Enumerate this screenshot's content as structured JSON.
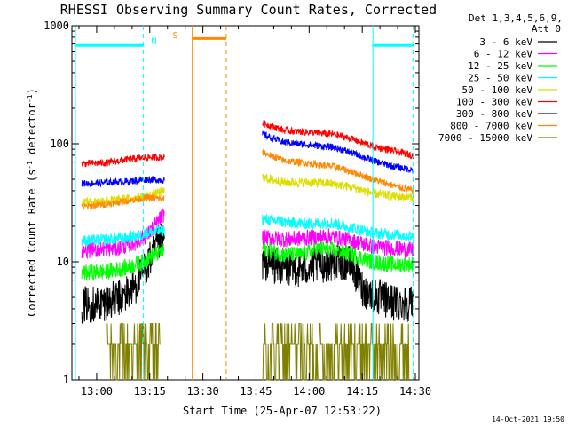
{
  "chart_data": {
    "type": "line",
    "title": "RHESSI Observing Summary Count Rates, Corrected",
    "xlabel": "Start Time (25-Apr-07 12:53:22)",
    "ylabel_main": "Corrected Count Rate (s",
    "ylabel_sup1": "-1",
    "ylabel_mid": " detector",
    "ylabel_sup2": "-1",
    "ylabel_end": ")",
    "yscale": "log",
    "ylim": [
      1,
      1000
    ],
    "xlim_minutes": [
      12.9,
      30.9
    ],
    "x_start_hm": [
      12,
      53
    ],
    "x_ticks": [
      {
        "label": "13:00",
        "t": 12.95
      },
      {
        "label": "13:15",
        "t": 13.25
      },
      {
        "label": "13:30",
        "t": 13.5
      },
      {
        "label": "13:45",
        "t": 13.75
      },
      {
        "label": "14:00",
        "t": 14.0
      },
      {
        "label": "14:15",
        "t": 14.25
      },
      {
        "label": "14:30",
        "t": 14.5
      }
    ],
    "y_ticks": [
      {
        "label": "1",
        "v": 1
      },
      {
        "label": "10",
        "v": 10
      },
      {
        "label": "100",
        "v": 100
      },
      {
        "label": "1000",
        "v": 1000
      }
    ],
    "legend": {
      "header1": "Det 1,3,4,5,6,9,",
      "header2": "Att 0",
      "placement": "right"
    },
    "series": [
      {
        "name": "3 - 6 keV",
        "color": "#000000",
        "seg1": [
          [
            12.93,
            4.3
          ],
          [
            13.03,
            4.5
          ],
          [
            13.12,
            5.0
          ],
          [
            13.18,
            6.2
          ],
          [
            13.24,
            9.5
          ],
          [
            13.29,
            14.0
          ],
          [
            13.32,
            15.5
          ]
        ],
        "seg2": [
          [
            13.78,
            10.0
          ],
          [
            13.85,
            9.2
          ],
          [
            13.95,
            8.6
          ],
          [
            14.05,
            9.5
          ],
          [
            14.15,
            10.0
          ],
          [
            14.2,
            9.5
          ],
          [
            14.25,
            6.0
          ],
          [
            14.3,
            5.2
          ],
          [
            14.4,
            4.5
          ],
          [
            14.49,
            4.5
          ]
        ],
        "noise": 0.16
      },
      {
        "name": "6 - 12 keV",
        "color": "#ff00ff",
        "seg1": [
          [
            12.93,
            12.5
          ],
          [
            13.1,
            13.0
          ],
          [
            13.18,
            14.5
          ],
          [
            13.24,
            17.0
          ],
          [
            13.29,
            22.0
          ],
          [
            13.32,
            26.0
          ]
        ],
        "seg2": [
          [
            13.78,
            16.0
          ],
          [
            13.9,
            15.5
          ],
          [
            14.0,
            16.0
          ],
          [
            14.1,
            16.5
          ],
          [
            14.2,
            15.0
          ],
          [
            14.3,
            13.5
          ],
          [
            14.4,
            13.0
          ],
          [
            14.49,
            12.5
          ]
        ],
        "noise": 0.07
      },
      {
        "name": "12 - 25 keV",
        "color": "#00ff00",
        "seg1": [
          [
            12.93,
            8.0
          ],
          [
            13.05,
            8.3
          ],
          [
            13.15,
            9.0
          ],
          [
            13.22,
            10.0
          ],
          [
            13.27,
            11.5
          ],
          [
            13.32,
            12.5
          ]
        ],
        "seg2": [
          [
            13.78,
            13.0
          ],
          [
            13.88,
            11.5
          ],
          [
            13.97,
            11.5
          ],
          [
            14.05,
            13.0
          ],
          [
            14.12,
            12.5
          ],
          [
            14.2,
            11.5
          ],
          [
            14.3,
            10.0
          ],
          [
            14.4,
            9.5
          ],
          [
            14.49,
            9.5
          ]
        ],
        "noise": 0.07
      },
      {
        "name": "25 - 50 keV",
        "color": "#00ffff",
        "seg1": [
          [
            12.93,
            15.0
          ],
          [
            13.05,
            15.5
          ],
          [
            13.15,
            16.0
          ],
          [
            13.24,
            17.5
          ],
          [
            13.32,
            18.5
          ]
        ],
        "seg2": [
          [
            13.78,
            23.0
          ],
          [
            13.9,
            21.5
          ],
          [
            14.0,
            21.0
          ],
          [
            14.1,
            21.5
          ],
          [
            14.2,
            19.5
          ],
          [
            14.3,
            17.5
          ],
          [
            14.4,
            17.0
          ],
          [
            14.49,
            16.5
          ]
        ],
        "noise": 0.05
      },
      {
        "name": "50 - 100 keV",
        "color": "#dddd00",
        "seg1": [
          [
            12.93,
            32.0
          ],
          [
            13.05,
            33.0
          ],
          [
            13.15,
            34.0
          ],
          [
            13.24,
            36.0
          ],
          [
            13.32,
            40.0
          ]
        ],
        "seg2": [
          [
            13.78,
            52.0
          ],
          [
            13.88,
            47.0
          ],
          [
            14.0,
            47.0
          ],
          [
            14.1,
            46.0
          ],
          [
            14.2,
            43.0
          ],
          [
            14.3,
            38.0
          ],
          [
            14.4,
            36.0
          ],
          [
            14.49,
            35.0
          ]
        ],
        "noise": 0.04
      },
      {
        "name": "100 - 300 keV",
        "color": "#ff0000",
        "seg1": [
          [
            12.93,
            68.0
          ],
          [
            13.05,
            69.0
          ],
          [
            13.15,
            74.0
          ],
          [
            13.24,
            77.0
          ],
          [
            13.32,
            77.0
          ]
        ],
        "seg2": [
          [
            13.78,
            150.0
          ],
          [
            13.88,
            130.0
          ],
          [
            14.0,
            125.0
          ],
          [
            14.12,
            120.0
          ],
          [
            14.2,
            110.0
          ],
          [
            14.3,
            95.0
          ],
          [
            14.4,
            87.0
          ],
          [
            14.49,
            80.0
          ]
        ],
        "noise": 0.03
      },
      {
        "name": "300 - 800 keV",
        "color": "#0000ff",
        "seg1": [
          [
            12.93,
            46.0
          ],
          [
            13.05,
            47.0
          ],
          [
            13.15,
            48.0
          ],
          [
            13.24,
            50.0
          ],
          [
            13.32,
            49.0
          ]
        ],
        "seg2": [
          [
            13.78,
            120.0
          ],
          [
            13.88,
            103.0
          ],
          [
            14.0,
            98.0
          ],
          [
            14.12,
            93.0
          ],
          [
            14.2,
            84.0
          ],
          [
            14.3,
            72.0
          ],
          [
            14.4,
            64.0
          ],
          [
            14.49,
            60.0
          ]
        ],
        "noise": 0.03
      },
      {
        "name": "800 - 7000 keV",
        "color": "#ff8800",
        "seg1": [
          [
            12.93,
            29.0
          ],
          [
            13.05,
            31.0
          ],
          [
            13.15,
            33.0
          ],
          [
            13.24,
            35.0
          ],
          [
            13.32,
            34.0
          ]
        ],
        "seg2": [
          [
            13.78,
            85.0
          ],
          [
            13.88,
            72.0
          ],
          [
            14.0,
            68.0
          ],
          [
            14.12,
            64.0
          ],
          [
            14.2,
            58.0
          ],
          [
            14.3,
            50.0
          ],
          [
            14.4,
            44.0
          ],
          [
            14.49,
            40.0
          ]
        ],
        "noise": 0.03
      },
      {
        "name": "7000 - 15000 keV",
        "color": "#808000",
        "seg1": [],
        "seg2": [],
        "noise": 0.0
      }
    ],
    "annotations": [
      {
        "text": "N",
        "color": "#00ffff",
        "t": 13.27,
        "v": 680
      },
      {
        "text": "S",
        "color": "#ff8800",
        "t": 13.37,
        "v": 760
      }
    ],
    "night_bars": [
      {
        "color": "#00ffff",
        "t0": 12.9,
        "t1": 13.22,
        "v": 680
      },
      {
        "color": "#00ffff",
        "t0": 14.3,
        "t1": 14.49,
        "v": 680
      }
    ],
    "saa_bar": {
      "color": "#ff8800",
      "t0": 13.45,
      "t1": 13.61,
      "v": 780
    },
    "vlines": [
      {
        "t": 12.9,
        "color": "#00ffff",
        "style": "solid"
      },
      {
        "t": 13.22,
        "color": "#00ffff",
        "style": "dash"
      },
      {
        "t": 13.45,
        "color": "#ff8800",
        "style": "solid"
      },
      {
        "t": 13.61,
        "color": "#ff8800",
        "style": "dash"
      },
      {
        "t": 14.3,
        "color": "#00ffff",
        "style": "solid"
      },
      {
        "t": 14.49,
        "color": "#00ffff",
        "style": "dash"
      }
    ],
    "timestamp": "14-Oct-2021 19:50"
  }
}
